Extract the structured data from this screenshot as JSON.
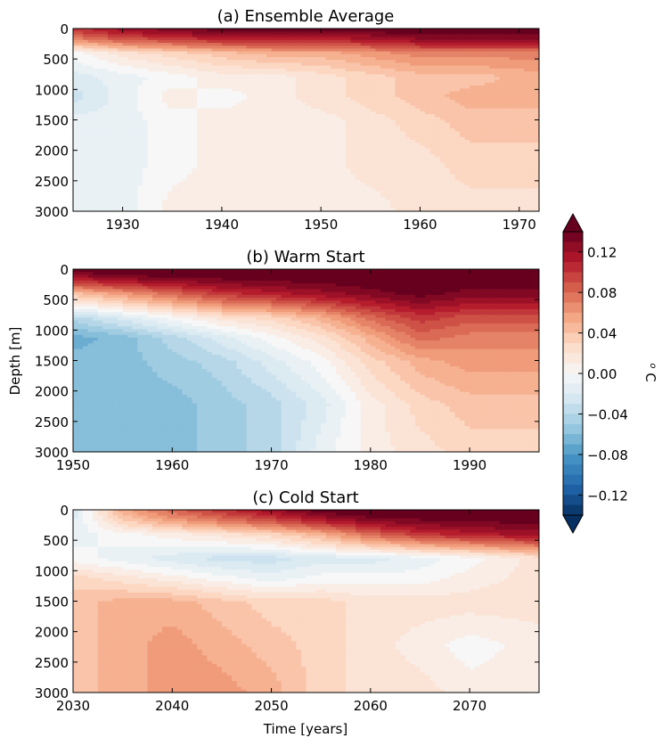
{
  "figure": {
    "ylabel": "Depth [m]",
    "xlabel": "Time [years]",
    "colorbar": {
      "label": "⁰C",
      "label_text": "o C",
      "range": [
        -0.14,
        0.14
      ],
      "ticks": [
        "0.12",
        "0.08",
        "0.04",
        "0.00",
        "−0.04",
        "−0.08",
        "−0.12"
      ],
      "tick_values": [
        0.12,
        0.08,
        0.04,
        0.0,
        -0.04,
        -0.08,
        -0.12
      ],
      "colormap": "RdBu_r"
    }
  },
  "chart_data": [
    {
      "type": "heatmap",
      "title": "(a) Ensemble Average",
      "x_range": [
        1925,
        1972
      ],
      "x_ticks": [
        1930,
        1940,
        1950,
        1960,
        1970
      ],
      "x_tick_labels": [
        "1930",
        "1940",
        "1950",
        "1960",
        "1970"
      ],
      "y_range": [
        0,
        3000
      ],
      "y_ticks": [
        0,
        500,
        1000,
        1500,
        2000,
        2500,
        3000
      ],
      "y_tick_labels": [
        "0",
        "500",
        "1000",
        "1500",
        "2000",
        "2500",
        "3000"
      ],
      "x": [
        1925,
        1930,
        1935,
        1940,
        1945,
        1950,
        1955,
        1960,
        1965,
        1972
      ],
      "depth": [
        0,
        200,
        500,
        800,
        1200,
        2000,
        3000
      ],
      "values": [
        [
          0.1,
          0.12,
          0.13,
          0.14,
          0.14,
          0.14,
          0.14,
          0.15,
          0.15,
          0.15
        ],
        [
          0.0,
          0.02,
          0.03,
          0.04,
          0.05,
          0.05,
          0.06,
          0.07,
          0.07,
          0.07
        ],
        [
          -0.02,
          -0.01,
          0.0,
          0.01,
          0.01,
          0.02,
          0.03,
          0.04,
          0.04,
          0.05
        ],
        [
          -0.03,
          -0.01,
          0.01,
          0.0,
          0.01,
          0.02,
          0.03,
          0.04,
          0.05,
          0.05
        ],
        [
          -0.01,
          -0.01,
          0.0,
          0.01,
          0.01,
          0.01,
          0.02,
          0.03,
          0.04,
          0.04
        ],
        [
          -0.01,
          -0.01,
          0.0,
          0.01,
          0.01,
          0.01,
          0.02,
          0.02,
          0.03,
          0.03
        ],
        [
          -0.01,
          -0.01,
          0.01,
          0.01,
          0.01,
          0.01,
          0.01,
          0.02,
          0.02,
          0.02
        ]
      ]
    },
    {
      "type": "heatmap",
      "title": "(b) Warm Start",
      "x_range": [
        1950,
        1997
      ],
      "x_ticks": [
        1950,
        1960,
        1970,
        1980,
        1990
      ],
      "x_tick_labels": [
        "1950",
        "1960",
        "1970",
        "1980",
        "1990"
      ],
      "y_range": [
        0,
        3000
      ],
      "y_ticks": [
        0,
        500,
        1000,
        1500,
        2000,
        2500,
        3000
      ],
      "y_tick_labels": [
        "0",
        "500",
        "1000",
        "1500",
        "2000",
        "2500",
        "3000"
      ],
      "x": [
        1950,
        1955,
        1960,
        1965,
        1970,
        1975,
        1980,
        1985,
        1990,
        1997
      ],
      "depth": [
        0,
        200,
        500,
        800,
        1200,
        2000,
        3000
      ],
      "values": [
        [
          0.14,
          0.15,
          0.15,
          0.15,
          0.15,
          0.15,
          0.15,
          0.15,
          0.15,
          0.15
        ],
        [
          0.04,
          0.06,
          0.08,
          0.1,
          0.11,
          0.12,
          0.13,
          0.14,
          0.13,
          0.13
        ],
        [
          -0.04,
          -0.02,
          0.0,
          0.02,
          0.03,
          0.05,
          0.08,
          0.1,
          0.09,
          0.09
        ],
        [
          -0.07,
          -0.06,
          -0.04,
          -0.02,
          0.0,
          0.02,
          0.05,
          0.08,
          0.07,
          0.07
        ],
        [
          -0.06,
          -0.06,
          -0.05,
          -0.04,
          -0.02,
          0.0,
          0.03,
          0.05,
          0.06,
          0.06
        ],
        [
          -0.06,
          -0.06,
          -0.06,
          -0.05,
          -0.04,
          -0.02,
          0.01,
          0.03,
          0.04,
          0.04
        ],
        [
          -0.06,
          -0.06,
          -0.06,
          -0.05,
          -0.04,
          -0.01,
          0.01,
          0.02,
          0.03,
          0.03
        ]
      ]
    },
    {
      "type": "heatmap",
      "title": "(c) Cold Start",
      "x_range": [
        2030,
        2077
      ],
      "x_ticks": [
        2030,
        2040,
        2050,
        2060,
        2070
      ],
      "x_tick_labels": [
        "2030",
        "2040",
        "2050",
        "2060",
        "2070"
      ],
      "y_range": [
        0,
        3000
      ],
      "y_ticks": [
        0,
        500,
        1000,
        1500,
        2000,
        2500,
        3000
      ],
      "y_tick_labels": [
        "0",
        "500",
        "1000",
        "1500",
        "2000",
        "2500",
        "3000"
      ],
      "x": [
        2030,
        2035,
        2040,
        2045,
        2050,
        2055,
        2060,
        2065,
        2070,
        2077
      ],
      "depth": [
        0,
        200,
        500,
        800,
        1200,
        2000,
        3000
      ],
      "values": [
        [
          -0.02,
          0.05,
          0.08,
          0.1,
          0.12,
          0.14,
          0.15,
          0.15,
          0.15,
          0.15
        ],
        [
          -0.01,
          0.0,
          0.01,
          0.02,
          0.03,
          0.05,
          0.08,
          0.1,
          0.11,
          0.12
        ],
        [
          0.0,
          -0.01,
          -0.02,
          -0.03,
          -0.03,
          -0.02,
          -0.02,
          -0.01,
          0.0,
          0.02
        ],
        [
          0.03,
          0.02,
          0.01,
          0.0,
          -0.01,
          0.0,
          0.0,
          0.0,
          0.01,
          0.02
        ],
        [
          0.04,
          0.05,
          0.05,
          0.04,
          0.03,
          0.03,
          0.02,
          0.02,
          0.02,
          0.02
        ],
        [
          0.04,
          0.05,
          0.06,
          0.05,
          0.04,
          0.03,
          0.02,
          0.01,
          0.0,
          0.01
        ],
        [
          0.04,
          0.05,
          0.06,
          0.06,
          0.05,
          0.03,
          0.02,
          0.02,
          0.01,
          0.01
        ]
      ]
    }
  ]
}
